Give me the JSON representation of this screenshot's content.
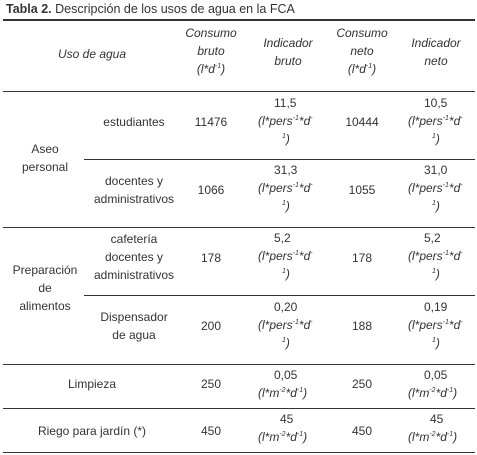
{
  "caption": {
    "bold": "Tabla 2.",
    "text": " Descripción de los usos de agua en la FCA"
  },
  "header": {
    "uso": "Uso de agua",
    "consumo_bruto": [
      "Consumo",
      "bruto"
    ],
    "indicador_bruto": [
      "Indicador",
      "bruto"
    ],
    "consumo_neto": [
      "Consumo",
      "neto"
    ],
    "indicador_neto": [
      "Indicador",
      "neto"
    ],
    "unit_ld": "(l*d",
    "unit_ld_sup": "-1",
    "unit_ld_end": ")"
  },
  "units": {
    "pers": "(l*pers",
    "pers_sup1": "-1",
    "pers_mid": "*d",
    "pers_sup2": "-",
    "pers_cont_sup": "1",
    "pers_cont_end": ")",
    "area": "(l*m",
    "area_sup1": "-2",
    "area_mid": "*d",
    "area_sup2": "-1",
    "area_end": ")"
  },
  "groups": [
    {
      "name": [
        "Aseo",
        "personal"
      ]
    },
    {
      "name": [
        "Preparación",
        "de",
        "alimentos"
      ]
    }
  ],
  "rows": [
    {
      "sub": [
        "estudiantes"
      ],
      "cb": "11476",
      "ib": "11,5",
      "cn": "10444",
      "in": "10,5"
    },
    {
      "sub": [
        "docentes y",
        "administrativos"
      ],
      "cb": "1066",
      "ib": "31,3",
      "cn": "1055",
      "in": "31,0"
    },
    {
      "sub": [
        "cafetería",
        "docentes y",
        "administrativos"
      ],
      "cb": "178",
      "ib": "5,2",
      "cn": "178",
      "in": "5,2"
    },
    {
      "sub": [
        "Dispensador",
        "de agua"
      ],
      "cb": "200",
      "ib": "0,20",
      "cn": "188",
      "in": "0,19"
    },
    {
      "sub": [
        "Limpieza"
      ],
      "cb": "250",
      "ib": "0,05",
      "cn": "250",
      "in": "0,05"
    },
    {
      "sub": [
        "Riego para jardín (*)"
      ],
      "cb": "450",
      "ib": "45",
      "cn": "450",
      "in": "45"
    }
  ]
}
